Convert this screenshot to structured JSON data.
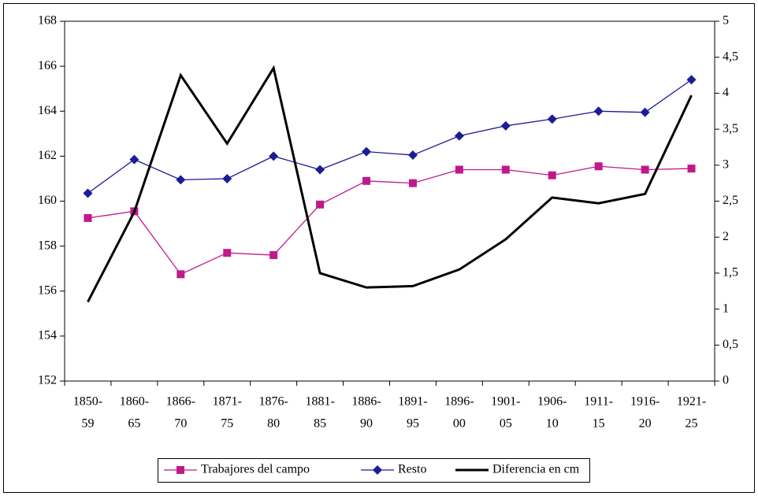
{
  "chart_data": {
    "type": "line",
    "categories": [
      [
        "1850-",
        "59"
      ],
      [
        "1860-",
        "65"
      ],
      [
        "1866-",
        "70"
      ],
      [
        "1871-",
        "75"
      ],
      [
        "1876-",
        "80"
      ],
      [
        "1881-",
        "85"
      ],
      [
        "1886-",
        "90"
      ],
      [
        "1891-",
        "95"
      ],
      [
        "1896-",
        "00"
      ],
      [
        "1901-",
        "05"
      ],
      [
        "1906-",
        "10"
      ],
      [
        "1911-",
        "15"
      ],
      [
        "1916-",
        "20"
      ],
      [
        "1921-",
        "25"
      ]
    ],
    "series": [
      {
        "name": "Trabajores del campo",
        "color": "#c0198a",
        "marker": "square",
        "values": [
          159.25,
          159.55,
          156.75,
          157.7,
          157.6,
          159.85,
          160.9,
          160.8,
          161.4,
          161.4,
          161.15,
          161.55,
          161.4,
          161.45
        ]
      },
      {
        "name": "Resto",
        "color": "#1c1c96",
        "marker": "diamond",
        "values": [
          160.35,
          161.85,
          160.95,
          161.0,
          162.0,
          161.4,
          162.2,
          162.05,
          162.9,
          163.35,
          163.65,
          164.0,
          163.95,
          165.4
        ]
      },
      {
        "name": "Diferencia en cm",
        "color": "#000000",
        "marker": "none",
        "axis": "y2",
        "values": [
          1.1,
          2.35,
          4.25,
          3.3,
          4.35,
          1.5,
          1.3,
          1.32,
          1.55,
          1.97,
          2.55,
          2.47,
          2.6,
          3.97
        ]
      }
    ],
    "ylim": [
      152,
      168
    ],
    "yticks": [
      152,
      154,
      156,
      158,
      160,
      162,
      164,
      166,
      168
    ],
    "y2lim": [
      0,
      5
    ],
    "y2ticks": [
      0,
      {
        "value": 0.5,
        "label": "0,5"
      },
      1,
      {
        "value": 1.5,
        "label": "1,5"
      },
      2,
      {
        "value": 2.5,
        "label": "2,5"
      },
      3,
      {
        "value": 3.5,
        "label": "3,5"
      },
      4,
      {
        "value": 4.5,
        "label": "4,5"
      },
      5
    ],
    "legend": "bottom"
  }
}
